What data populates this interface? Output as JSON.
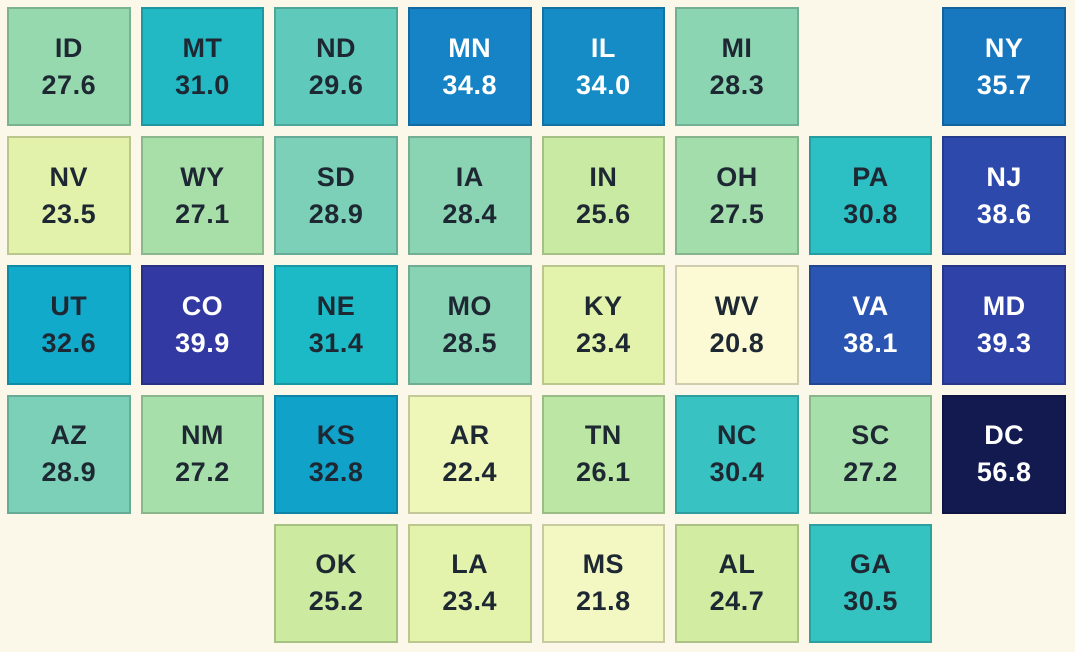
{
  "background": "#FBF7E9",
  "text_colors": {
    "dark": "#1E2833",
    "light": "#FFFFFF"
  },
  "chart_data": {
    "type": "heatmap",
    "subtype": "us-state-tile-grid-map",
    "title": "",
    "grid": {
      "rows": 5,
      "cols": 8
    },
    "value_range": [
      20.8,
      56.8
    ],
    "colormap": "YlGnBu",
    "states": [
      {
        "abbr": "ID",
        "value": "27.6",
        "row": 1,
        "col": 1,
        "fill": "#97D9AE",
        "text": "#1E2833"
      },
      {
        "abbr": "MT",
        "value": "31.0",
        "row": 1,
        "col": 2,
        "fill": "#23B9C4",
        "text": "#1E2833"
      },
      {
        "abbr": "ND",
        "value": "29.6",
        "row": 1,
        "col": 3,
        "fill": "#5FCABB",
        "text": "#1E2833"
      },
      {
        "abbr": "MN",
        "value": "34.8",
        "row": 1,
        "col": 4,
        "fill": "#1583C5",
        "text": "#FFFFFF"
      },
      {
        "abbr": "IL",
        "value": "34.0",
        "row": 1,
        "col": 5,
        "fill": "#168CC7",
        "text": "#FFFFFF"
      },
      {
        "abbr": "MI",
        "value": "28.3",
        "row": 1,
        "col": 6,
        "fill": "#8CD5B2",
        "text": "#1E2833"
      },
      {
        "abbr": "NY",
        "value": "35.7",
        "row": 1,
        "col": 8,
        "fill": "#1778C0",
        "text": "#FFFFFF"
      },
      {
        "abbr": "NV",
        "value": "23.5",
        "row": 2,
        "col": 1,
        "fill": "#E3F2AB",
        "text": "#1E2833"
      },
      {
        "abbr": "WY",
        "value": "27.1",
        "row": 2,
        "col": 2,
        "fill": "#A8DFA9",
        "text": "#1E2833"
      },
      {
        "abbr": "SD",
        "value": "28.9",
        "row": 2,
        "col": 3,
        "fill": "#7CD0B7",
        "text": "#1E2833"
      },
      {
        "abbr": "IA",
        "value": "28.4",
        "row": 2,
        "col": 4,
        "fill": "#8AD4B3",
        "text": "#1E2833"
      },
      {
        "abbr": "IN",
        "value": "25.6",
        "row": 2,
        "col": 5,
        "fill": "#C9EAA2",
        "text": "#1E2833"
      },
      {
        "abbr": "OH",
        "value": "27.5",
        "row": 2,
        "col": 6,
        "fill": "#A2DDAB",
        "text": "#1E2833"
      },
      {
        "abbr": "PA",
        "value": "30.8",
        "row": 2,
        "col": 7,
        "fill": "#2CBFC4",
        "text": "#1E2833"
      },
      {
        "abbr": "NJ",
        "value": "38.6",
        "row": 2,
        "col": 8,
        "fill": "#2C49AB",
        "text": "#FFFFFF"
      },
      {
        "abbr": "UT",
        "value": "32.6",
        "row": 3,
        "col": 1,
        "fill": "#12AACB",
        "text": "#1E2833"
      },
      {
        "abbr": "CO",
        "value": "39.9",
        "row": 3,
        "col": 2,
        "fill": "#3239A2",
        "text": "#FFFFFF"
      },
      {
        "abbr": "NE",
        "value": "31.4",
        "row": 3,
        "col": 3,
        "fill": "#1CB9C6",
        "text": "#1E2833"
      },
      {
        "abbr": "MO",
        "value": "28.5",
        "row": 3,
        "col": 4,
        "fill": "#88D3B4",
        "text": "#1E2833"
      },
      {
        "abbr": "KY",
        "value": "23.4",
        "row": 3,
        "col": 5,
        "fill": "#E4F3AC",
        "text": "#1E2833"
      },
      {
        "abbr": "WV",
        "value": "20.8",
        "row": 3,
        "col": 6,
        "fill": "#FBFAD4",
        "text": "#1E2833"
      },
      {
        "abbr": "VA",
        "value": "38.1",
        "row": 3,
        "col": 7,
        "fill": "#2A55B2",
        "text": "#FFFFFF"
      },
      {
        "abbr": "MD",
        "value": "39.3",
        "row": 3,
        "col": 8,
        "fill": "#2F42A7",
        "text": "#FFFFFF"
      },
      {
        "abbr": "AZ",
        "value": "28.9",
        "row": 4,
        "col": 1,
        "fill": "#7CD0B7",
        "text": "#1E2833"
      },
      {
        "abbr": "NM",
        "value": "27.2",
        "row": 4,
        "col": 2,
        "fill": "#A7DFAA",
        "text": "#1E2833"
      },
      {
        "abbr": "KS",
        "value": "32.8",
        "row": 4,
        "col": 3,
        "fill": "#11A2CA",
        "text": "#1E2833"
      },
      {
        "abbr": "AR",
        "value": "22.4",
        "row": 4,
        "col": 4,
        "fill": "#EEF6B8",
        "text": "#1E2833"
      },
      {
        "abbr": "TN",
        "value": "26.1",
        "row": 4,
        "col": 5,
        "fill": "#BCE6A4",
        "text": "#1E2833"
      },
      {
        "abbr": "NC",
        "value": "30.4",
        "row": 4,
        "col": 6,
        "fill": "#38C2C1",
        "text": "#1E2833"
      },
      {
        "abbr": "SC",
        "value": "27.2",
        "row": 4,
        "col": 7,
        "fill": "#A7DFAA",
        "text": "#1E2833"
      },
      {
        "abbr": "DC",
        "value": "56.8",
        "row": 4,
        "col": 8,
        "fill": "#121A50",
        "text": "#FFFFFF"
      },
      {
        "abbr": "OK",
        "value": "25.2",
        "row": 5,
        "col": 3,
        "fill": "#CCEBA0",
        "text": "#1E2833"
      },
      {
        "abbr": "LA",
        "value": "23.4",
        "row": 5,
        "col": 4,
        "fill": "#E4F3AC",
        "text": "#1E2833"
      },
      {
        "abbr": "MS",
        "value": "21.8",
        "row": 5,
        "col": 5,
        "fill": "#F3F8C2",
        "text": "#1E2833"
      },
      {
        "abbr": "AL",
        "value": "24.7",
        "row": 5,
        "col": 6,
        "fill": "#D2EDA2",
        "text": "#1E2833"
      },
      {
        "abbr": "GA",
        "value": "30.5",
        "row": 5,
        "col": 7,
        "fill": "#35C3C2",
        "text": "#1E2833"
      }
    ]
  }
}
